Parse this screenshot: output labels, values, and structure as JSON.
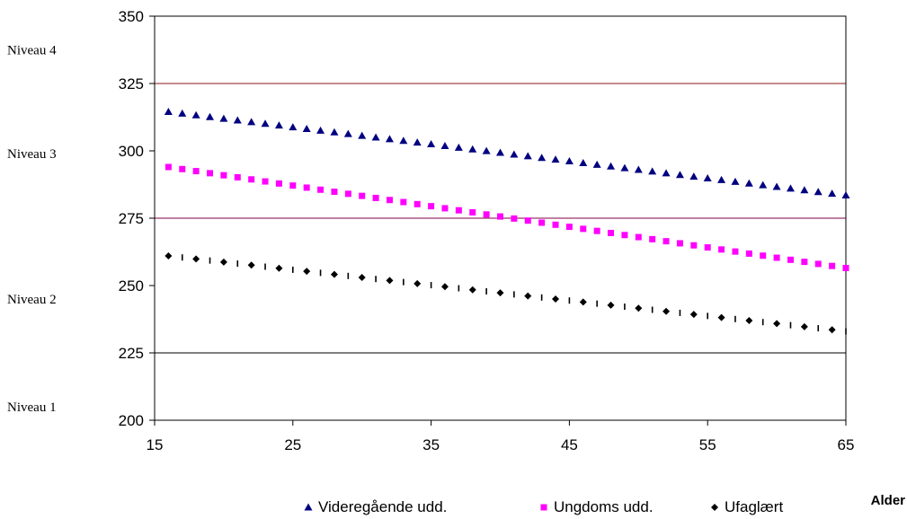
{
  "chart_data": {
    "type": "scatter",
    "title": "",
    "xlabel": "Alder",
    "ylabel": "",
    "xlim": [
      15,
      65
    ],
    "ylim": [
      200,
      350
    ],
    "x_ticks": [
      15,
      25,
      35,
      45,
      55,
      65
    ],
    "y_ticks": [
      200,
      225,
      250,
      275,
      300,
      325,
      350
    ],
    "grid": false,
    "legend_position": "bottom",
    "reference_lines": [
      {
        "y": 325,
        "color": "#8B1A1A"
      },
      {
        "y": 275,
        "color": "#800040"
      },
      {
        "y": 225,
        "color": "#000000"
      }
    ],
    "level_labels": [
      {
        "label": "Niveau 4",
        "y": 337.5
      },
      {
        "label": "Niveau 3",
        "y": 299
      },
      {
        "label": "Niveau 2",
        "y": 245
      },
      {
        "label": "Niveau 1",
        "y": 205
      }
    ],
    "series": [
      {
        "name": "Videregående udd.",
        "color": "#000080",
        "marker": "triangle",
        "x_start": 16,
        "x_end": 65,
        "y_start": 314.5,
        "y_end": 283.5
      },
      {
        "name": "Ungdoms udd.",
        "color": "#FF00FF",
        "marker": "square",
        "x_start": 16,
        "x_end": 65,
        "y_start": 294,
        "y_end": 256.5
      },
      {
        "name": "Ufaglært",
        "color": "#000000",
        "marker": "diamond",
        "x_start": 16,
        "x_end": 65,
        "y_start": 261,
        "y_end": 233
      }
    ]
  }
}
